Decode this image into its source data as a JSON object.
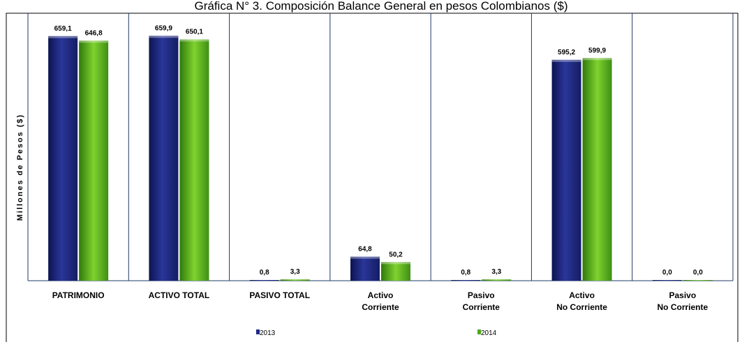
{
  "chart_data": {
    "type": "bar",
    "title": "Gráfica N° 3. Composición Balance General en pesos Colombianos ($)",
    "ylabel": "Millones de Pesos ($)",
    "xlabel": "",
    "ylim": [
      0,
      700
    ],
    "grid": false,
    "legend_position": "bottom",
    "categories": [
      [
        "PATRIMONIO"
      ],
      [
        "ACTIVO TOTAL"
      ],
      [
        "PASIVO TOTAL"
      ],
      [
        "Activo",
        "Corriente"
      ],
      [
        "Pasivo",
        "Corriente"
      ],
      [
        "Activo",
        "No Corriente"
      ],
      [
        "Pasivo",
        "No Corriente"
      ]
    ],
    "series": [
      {
        "name": "2013",
        "color": "#1f2a8a",
        "values": [
          659.1,
          659.9,
          0.8,
          64.8,
          0.8,
          595.2,
          0.0
        ],
        "labels": [
          "659,1",
          "659,9",
          "0,8",
          "64,8",
          "0,8",
          "595,2",
          "0,0"
        ]
      },
      {
        "name": "2014",
        "color": "#4fa81c",
        "values": [
          646.8,
          650.1,
          3.3,
          50.2,
          3.3,
          599.9,
          0.0
        ],
        "labels": [
          "646,8",
          "650,1",
          "3,3",
          "50,2",
          "3,3",
          "599,9",
          "0,0"
        ]
      }
    ]
  }
}
